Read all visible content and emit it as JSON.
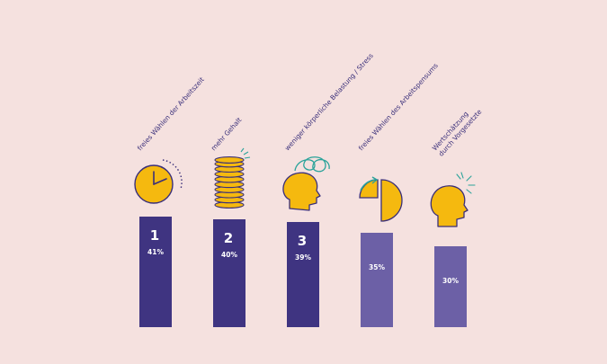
{
  "chart_data": {
    "type": "bar",
    "categories": [
      [
        "freies Wählen der Arbeitszeit"
      ],
      [
        "mehr Gehalt"
      ],
      [
        "weniger körperliche Belastung / Stress"
      ],
      [
        "freies Wählen des Arbeitspensums"
      ],
      [
        "Wertschätzung",
        "durch Vorgesetzte"
      ]
    ],
    "values": [
      41,
      40,
      39,
      35,
      30
    ],
    "value_labels": [
      "41%",
      "40%",
      "39%",
      "35%",
      "30%"
    ],
    "ranks": [
      "1",
      "2",
      "3",
      "",
      ""
    ],
    "icons": [
      "clock-icon",
      "coin-stack-icon",
      "stressed-head-icon",
      "pie-chart-icon",
      "appreciated-head-icon"
    ],
    "ylim": [
      0,
      41
    ],
    "colors": {
      "background": "#f5e1df",
      "bar_top3": "#3f3481",
      "bar_other": "#6c60a6",
      "icon_fill": "#f5b90f",
      "icon_stroke": "#3a2f7a",
      "accent": "#2aa39a",
      "label": "#3a2f7a"
    }
  }
}
